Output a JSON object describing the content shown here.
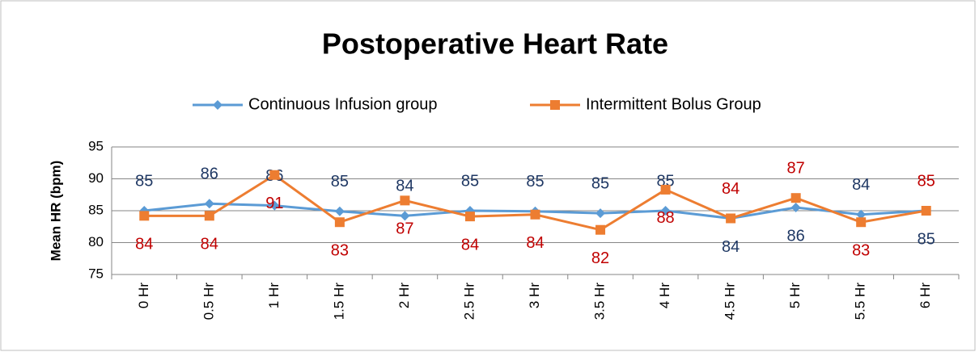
{
  "chart_data": {
    "type": "line",
    "title": "Postoperative Heart Rate",
    "y_label": "Mean HR (bpm)",
    "categories": [
      "0 Hr",
      "0.5 Hr",
      "1 Hr",
      "1.5 Hr",
      "2 Hr",
      "2.5 Hr",
      "3 Hr",
      "3.5 Hr",
      "4 Hr",
      "4.5 Hr",
      "5 Hr",
      "5.5 Hr",
      "6 Hr"
    ],
    "series": [
      {
        "name": "Continuous Infusion group",
        "color": "#5b9bd5",
        "label_color": "#1f3864",
        "marker": "diamond",
        "values": [
          85.0,
          86.1,
          85.8,
          84.9,
          84.2,
          85.0,
          84.9,
          84.6,
          85.0,
          83.8,
          85.5,
          84.4,
          85.0
        ],
        "value_labels": [
          "85",
          "86",
          "86",
          "85",
          "84",
          "85",
          "85",
          "85",
          "85",
          "84",
          "86",
          "84",
          "85"
        ]
      },
      {
        "name": "Intermittent Bolus Group",
        "color": "#ed7d31",
        "label_color": "#c00000",
        "marker": "square",
        "values": [
          84.2,
          84.2,
          90.6,
          83.2,
          86.6,
          84.1,
          84.4,
          82.0,
          88.3,
          83.8,
          87.0,
          83.2,
          85.0
        ],
        "value_labels": [
          "84",
          "84",
          "91",
          "83",
          "87",
          "84",
          "84",
          "82",
          "88",
          "84",
          "87",
          "83",
          "85"
        ]
      }
    ],
    "ylim": [
      75,
      95
    ],
    "yticks": [
      75,
      80,
      85,
      90,
      95
    ],
    "grid": true,
    "legend": "top"
  }
}
